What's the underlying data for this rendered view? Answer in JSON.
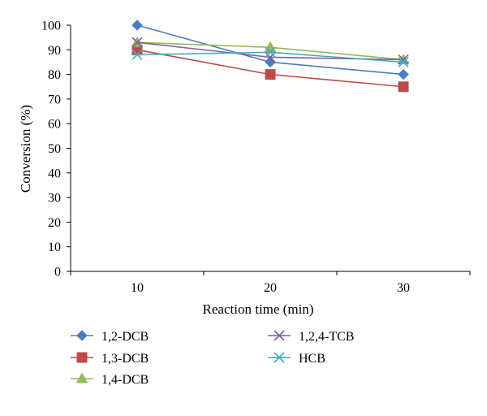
{
  "chart_data": {
    "type": "line",
    "title": "",
    "xlabel": "Reaction time (min)",
    "ylabel": "Conversion (%)",
    "categories": [
      "10",
      "20",
      "30"
    ],
    "x": [
      10,
      20,
      30
    ],
    "ylim": [
      0,
      100
    ],
    "yticks": [
      "0",
      "10",
      "20",
      "30",
      "40",
      "50",
      "60",
      "70",
      "80",
      "90",
      "100"
    ],
    "grid": false,
    "legend_position": "bottom",
    "series": [
      {
        "name": "1,2-DCB",
        "values": [
          100,
          85,
          80
        ],
        "color": "#4a7ebb",
        "marker": "diamond"
      },
      {
        "name": "1,3-DCB",
        "values": [
          90,
          80,
          75
        ],
        "color": "#be4b48",
        "marker": "square"
      },
      {
        "name": "1,4-DCB",
        "values": [
          93,
          91,
          86
        ],
        "color": "#98b954",
        "marker": "triangle"
      },
      {
        "name": "1,2,4-TCB",
        "values": [
          93,
          87,
          86
        ],
        "color": "#7d60a0",
        "marker": "x"
      },
      {
        "name": "HCB",
        "values": [
          88,
          89,
          85
        ],
        "color": "#46aac4",
        "marker": "asterisk"
      }
    ]
  }
}
